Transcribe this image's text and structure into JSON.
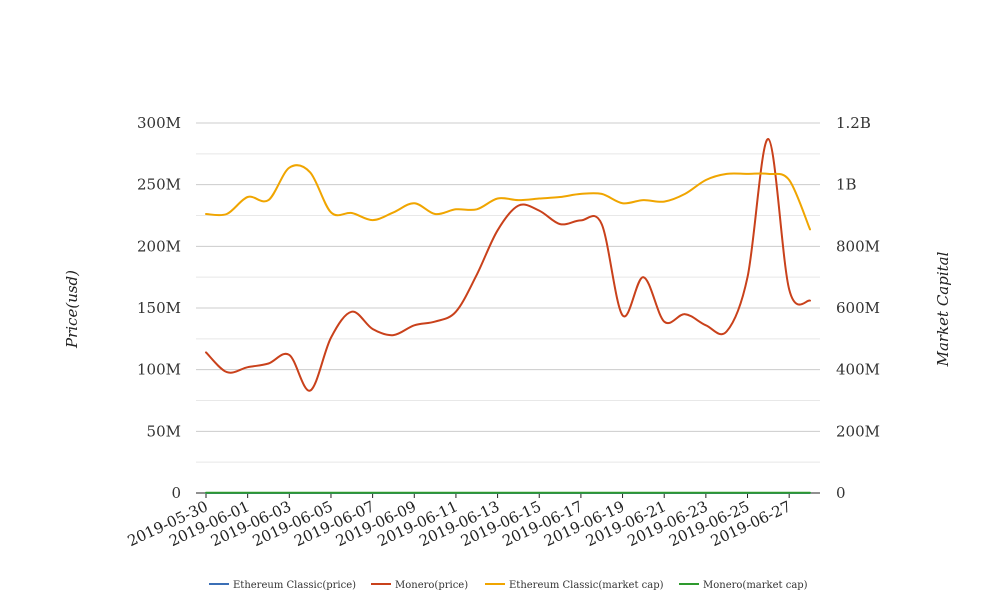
{
  "chart_data": {
    "type": "line",
    "title": "",
    "ylabel_left": "Price(usd)",
    "ylabel_right": "Market Capital",
    "y_left_ticks": [
      "0",
      "50M",
      "100M",
      "150M",
      "200M",
      "250M",
      "300M"
    ],
    "y_right_ticks": [
      "0",
      "200M",
      "400M",
      "600M",
      "800M",
      "1B",
      "1.2B"
    ],
    "ylim_left": [
      0,
      300000000
    ],
    "ylim_right": [
      0,
      1200000000
    ],
    "grid": true,
    "legend_position": "bottom",
    "x_ticks": [
      "2019-05-30",
      "2019-06-01",
      "2019-06-03",
      "2019-06-05",
      "2019-06-07",
      "2019-06-09",
      "2019-06-11",
      "2019-06-13",
      "2019-06-15",
      "2019-06-17",
      "2019-06-19",
      "2019-06-21",
      "2019-06-23",
      "2019-06-25",
      "2019-06-27"
    ],
    "x": [
      "2019-05-30",
      "2019-05-31",
      "2019-06-01",
      "2019-06-02",
      "2019-06-03",
      "2019-06-04",
      "2019-06-05",
      "2019-06-06",
      "2019-06-07",
      "2019-06-08",
      "2019-06-09",
      "2019-06-10",
      "2019-06-11",
      "2019-06-12",
      "2019-06-13",
      "2019-06-14",
      "2019-06-15",
      "2019-06-16",
      "2019-06-17",
      "2019-06-18",
      "2019-06-19",
      "2019-06-20",
      "2019-06-21",
      "2019-06-22",
      "2019-06-23",
      "2019-06-24",
      "2019-06-25",
      "2019-06-26",
      "2019-06-27",
      "2019-06-28"
    ],
    "series": [
      {
        "name": "Ethereum Classic(price)",
        "axis": "left",
        "color": "#3b6fb6",
        "values": [
          6,
          6,
          6,
          6,
          6,
          6,
          6,
          6,
          6,
          6,
          6,
          6,
          6,
          6,
          6,
          6,
          6,
          6,
          6,
          6,
          6,
          6,
          6,
          6,
          6,
          6,
          6,
          6,
          6,
          6
        ]
      },
      {
        "name": "Monero(price)",
        "axis": "left",
        "color": "#c9411b",
        "values": [
          114000000,
          98000000,
          102000000,
          105000000,
          112000000,
          83000000,
          126000000,
          147000000,
          133000000,
          128000000,
          136000000,
          139000000,
          147000000,
          177000000,
          213000000,
          233000000,
          229000000,
          218000000,
          221000000,
          218000000,
          144000000,
          175000000,
          139000000,
          145000000,
          136000000,
          131000000,
          175000000,
          287000000,
          165000000,
          156000000
        ]
      },
      {
        "name": "Ethereum Classic(market cap)",
        "axis": "right",
        "color": "#f0a500",
        "values": [
          905000000,
          905000000,
          960000000,
          950000000,
          1055000000,
          1040000000,
          910000000,
          908000000,
          885000000,
          910000000,
          940000000,
          905000000,
          920000000,
          920000000,
          955000000,
          950000000,
          955000000,
          960000000,
          970000000,
          970000000,
          940000000,
          950000000,
          945000000,
          970000000,
          1015000000,
          1035000000,
          1035000000,
          1035000000,
          1015000000,
          855000000
        ]
      },
      {
        "name": "Monero(market cap)",
        "axis": "right",
        "color": "#2e9a2e",
        "values": [
          1000000,
          1000000,
          1000000,
          1000000,
          1000000,
          1000000,
          1000000,
          1000000,
          1000000,
          1000000,
          1000000,
          1000000,
          1000000,
          1000000,
          1000000,
          1000000,
          1000000,
          1000000,
          1000000,
          1000000,
          1000000,
          1000000,
          1000000,
          1000000,
          1000000,
          1000000,
          1000000,
          1000000,
          1000000,
          1000000
        ]
      }
    ]
  }
}
